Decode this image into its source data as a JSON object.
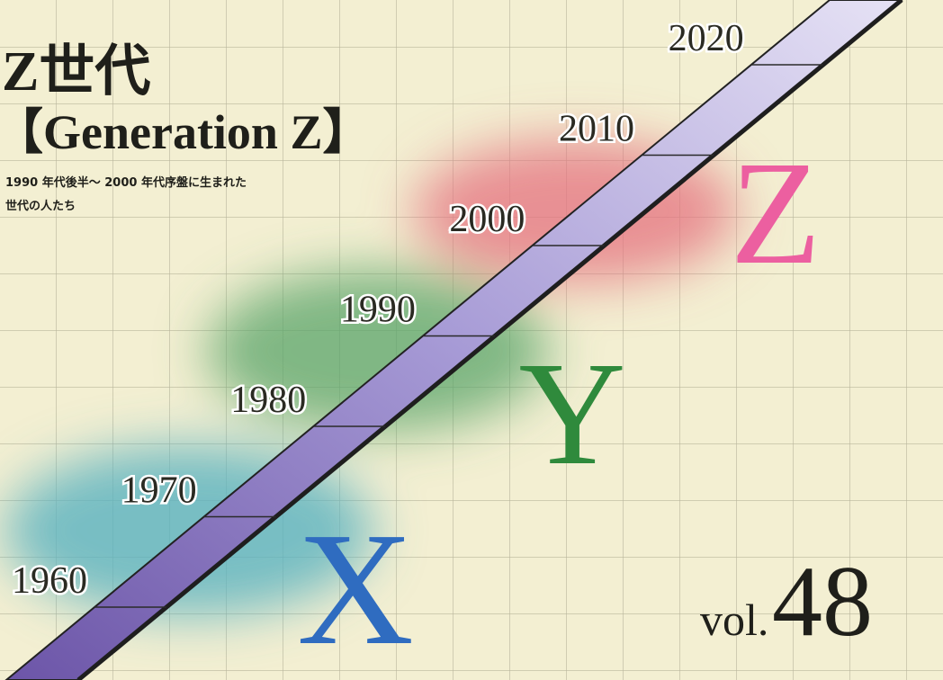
{
  "header": {
    "title": "Z世代",
    "subtitle": "【Generation Z】",
    "description": [
      "1990 年代後半〜 2000 年代序盤に生まれた",
      "世代の人たち"
    ]
  },
  "timeline": {
    "years": [
      "1960",
      "1970",
      "1980",
      "1990",
      "2000",
      "2010",
      "2020"
    ]
  },
  "generations": [
    "X",
    "Y",
    "Z"
  ],
  "issue": {
    "prefix": "vol.",
    "number": "48"
  }
}
